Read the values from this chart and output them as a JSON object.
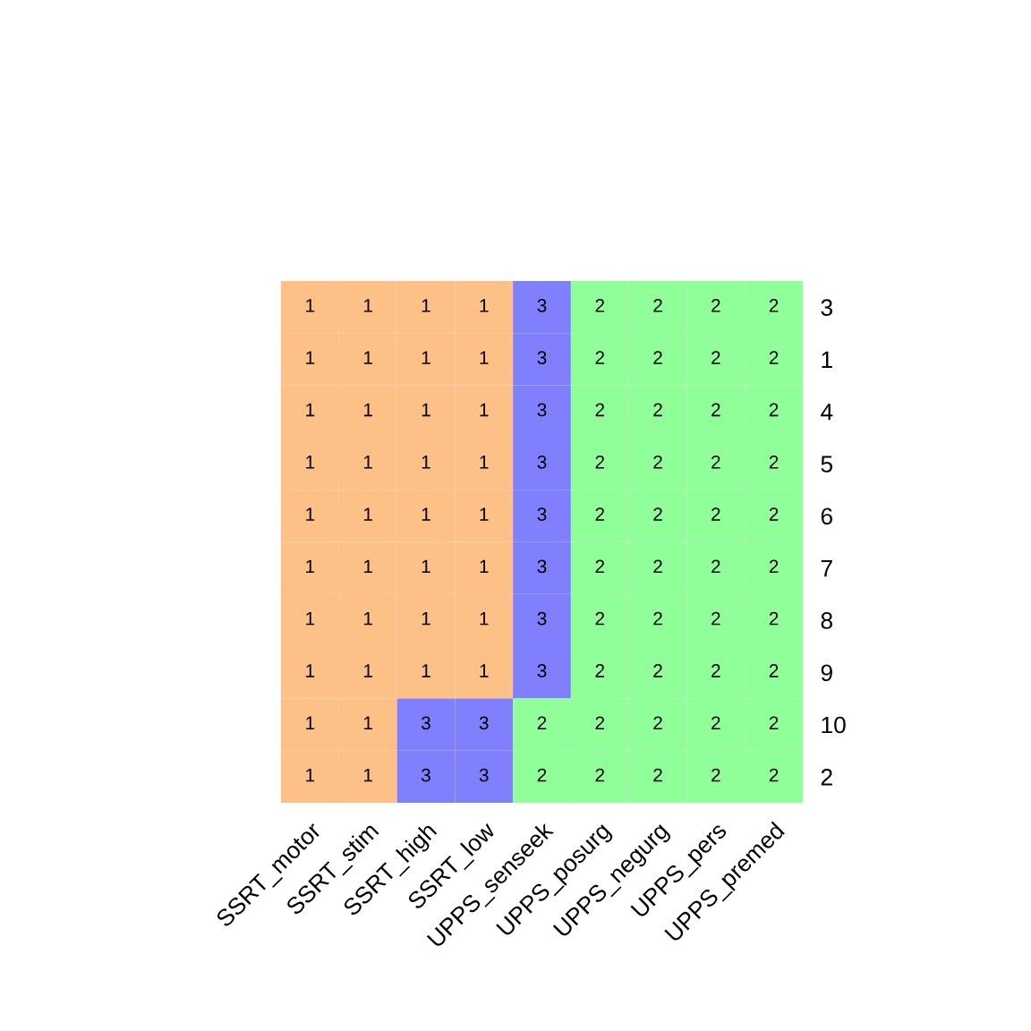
{
  "chart_data": {
    "type": "heatmap",
    "categories": [
      "SSRT_motor",
      "SSRT_stim",
      "SSRT_high",
      "SSRT_low",
      "UPPS_senseek",
      "UPPS_posurg",
      "UPPS_negurg",
      "UPPS_pers",
      "UPPS_premed"
    ],
    "y_categories": [
      "3",
      "1",
      "4",
      "5",
      "6",
      "7",
      "8",
      "9",
      "10",
      "2"
    ],
    "cells": [
      [
        1,
        1,
        1,
        1,
        3,
        2,
        2,
        2,
        2
      ],
      [
        1,
        1,
        1,
        1,
        3,
        2,
        2,
        2,
        2
      ],
      [
        1,
        1,
        1,
        1,
        3,
        2,
        2,
        2,
        2
      ],
      [
        1,
        1,
        1,
        1,
        3,
        2,
        2,
        2,
        2
      ],
      [
        1,
        1,
        1,
        1,
        3,
        2,
        2,
        2,
        2
      ],
      [
        1,
        1,
        1,
        1,
        3,
        2,
        2,
        2,
        2
      ],
      [
        1,
        1,
        1,
        1,
        3,
        2,
        2,
        2,
        2
      ],
      [
        1,
        1,
        1,
        1,
        3,
        2,
        2,
        2,
        2
      ],
      [
        1,
        1,
        3,
        3,
        2,
        2,
        2,
        2,
        2
      ],
      [
        1,
        1,
        3,
        3,
        2,
        2,
        2,
        2,
        2
      ]
    ],
    "colors": [
      "#fdc086",
      "#90ff99",
      "#8080ff"
    ],
    "data_labels": true
  }
}
